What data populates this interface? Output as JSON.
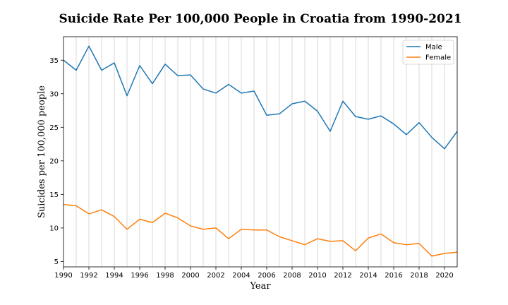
{
  "chart_data": {
    "type": "line",
    "title": "Suicide Rate Per 100,000 People in Croatia from 1990-2021",
    "xlabel": "Year",
    "ylabel": "Suicides per 100,000 people",
    "xlim": [
      1990,
      2021
    ],
    "ylim": [
      4.2,
      38.5
    ],
    "xticks": [
      1990,
      1992,
      1994,
      1996,
      1998,
      2000,
      2002,
      2004,
      2006,
      2008,
      2010,
      2012,
      2014,
      2016,
      2018,
      2020
    ],
    "yticks": [
      5,
      10,
      15,
      20,
      25,
      30,
      35
    ],
    "grid": "vertical",
    "legend_position": "top-right",
    "x": [
      1990,
      1991,
      1992,
      1993,
      1994,
      1995,
      1996,
      1997,
      1998,
      1999,
      2000,
      2001,
      2002,
      2003,
      2004,
      2005,
      2006,
      2007,
      2008,
      2009,
      2010,
      2011,
      2012,
      2013,
      2014,
      2015,
      2016,
      2017,
      2018,
      2019,
      2020,
      2021
    ],
    "series": [
      {
        "name": "Male",
        "color": "#1f77b4",
        "values": [
          35.0,
          33.5,
          37.1,
          33.5,
          34.6,
          29.7,
          34.2,
          31.5,
          34.4,
          32.7,
          32.8,
          30.7,
          30.1,
          31.4,
          30.1,
          30.4,
          26.8,
          27.0,
          28.5,
          28.9,
          27.4,
          24.4,
          28.9,
          26.6,
          26.2,
          26.7,
          25.5,
          23.9,
          25.7,
          23.5,
          21.8,
          24.4
        ]
      },
      {
        "name": "Female",
        "color": "#ff7f0e",
        "values": [
          13.5,
          13.3,
          12.1,
          12.7,
          11.7,
          9.8,
          11.3,
          10.8,
          12.2,
          11.5,
          10.3,
          9.8,
          10.0,
          8.4,
          9.8,
          9.7,
          9.7,
          8.7,
          8.1,
          7.5,
          8.4,
          8.0,
          8.1,
          6.6,
          8.5,
          9.1,
          7.8,
          7.5,
          7.7,
          5.8,
          6.2,
          6.4
        ]
      }
    ]
  }
}
